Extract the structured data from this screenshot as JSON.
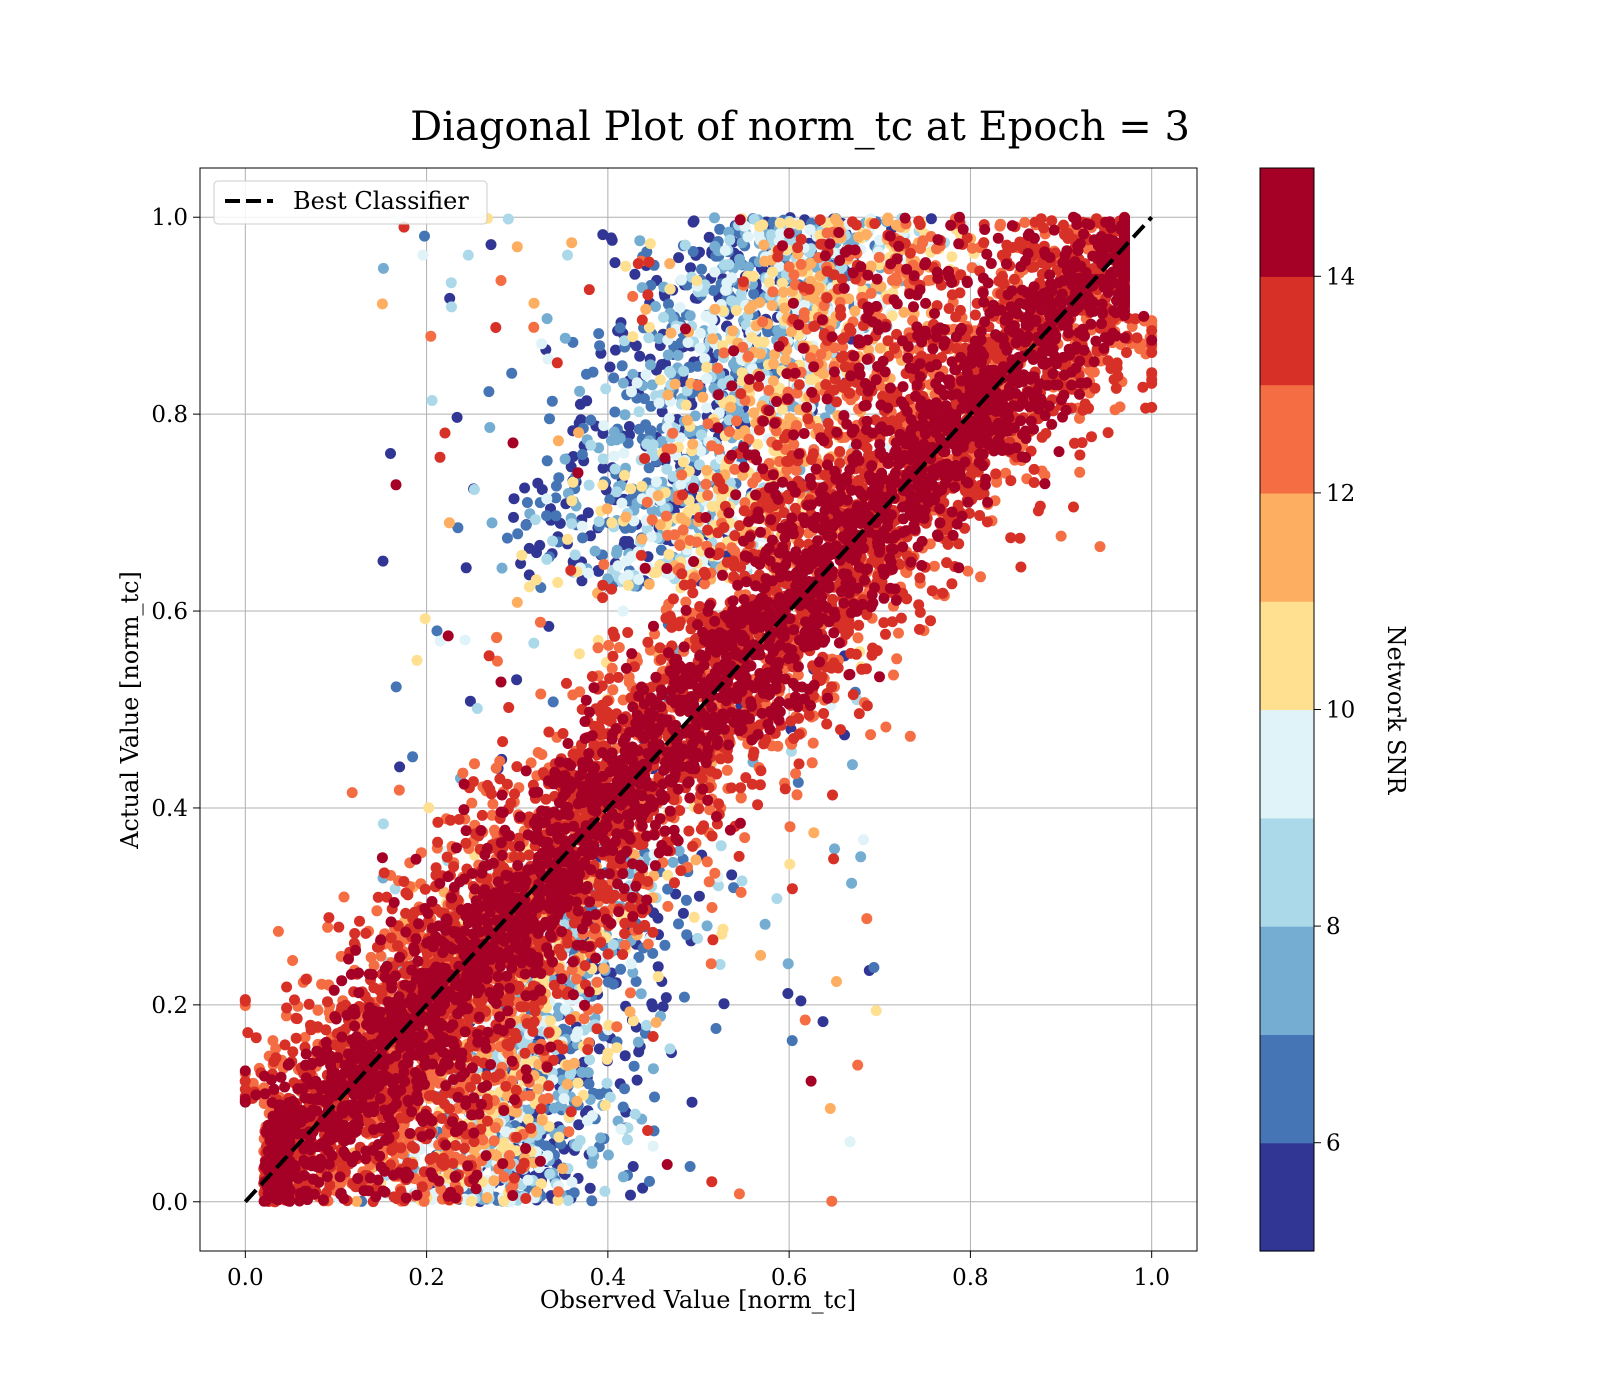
{
  "chart_data": {
    "type": "scatter",
    "title": "Diagonal Plot of norm_tc at Epoch = 3",
    "xlabel": "Observed Value [norm_tc]",
    "ylabel": "Actual Value [norm_tc]",
    "xlim": [
      -0.05,
      1.05
    ],
    "ylim": [
      -0.05,
      1.05
    ],
    "x_ticks": [
      0.0,
      0.2,
      0.4,
      0.6,
      0.8,
      1.0
    ],
    "x_tick_labels": [
      "0.0",
      "0.2",
      "0.4",
      "0.6",
      "0.8",
      "1.0"
    ],
    "y_ticks": [
      0.0,
      0.2,
      0.4,
      0.6,
      0.8,
      1.0
    ],
    "y_tick_labels": [
      "0.0",
      "0.2",
      "0.4",
      "0.6",
      "0.8",
      "1.0"
    ],
    "grid": true,
    "legend": {
      "placement": "upper-left",
      "entries": [
        {
          "label": "Best Classifier",
          "style": "dashed",
          "color": "#000000"
        }
      ]
    },
    "reference_line": {
      "label": "Best Classifier",
      "x": [
        0.0,
        1.0
      ],
      "y": [
        0.0,
        1.0
      ]
    },
    "colorbar": {
      "label": "Network SNR",
      "range": [
        5,
        15
      ],
      "ticks": [
        6,
        8,
        10,
        12,
        14
      ],
      "tick_labels": [
        "6",
        "8",
        "10",
        "12",
        "14"
      ],
      "colors": [
        "#313695",
        "#4575b4",
        "#74add1",
        "#abd9e9",
        "#e0f3f8",
        "#fee090",
        "#fdae61",
        "#f46d43",
        "#d73027",
        "#a50026"
      ]
    },
    "scatter_summary": {
      "point_count_estimate": 12000,
      "high_snr_band": "points with Network SNR near 14-15 lie close to the diagonal y = x",
      "low_snr_regions": "points with Network SNR near 5-9 cluster at x between 0.3 and 0.55, spanning y near 0.0-0.3 and y near 0.65-1.0"
    }
  }
}
